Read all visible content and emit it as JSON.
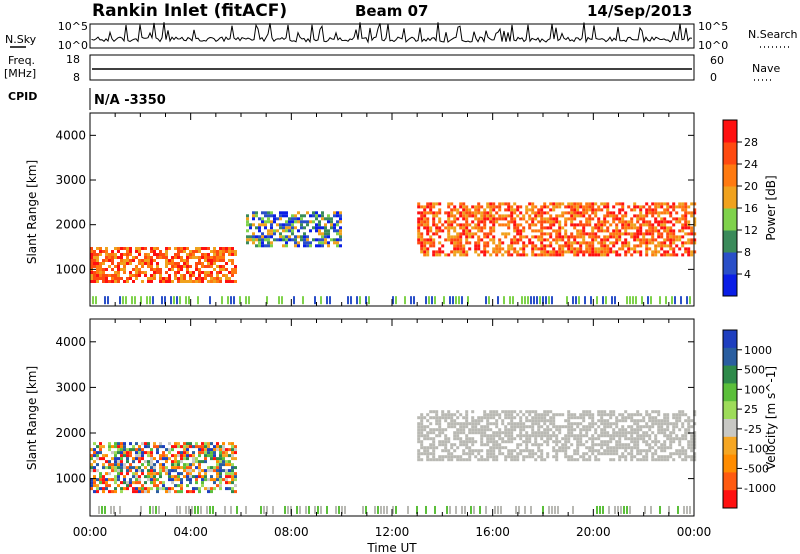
{
  "header": {
    "station": "Rankin Inlet (fitACF)",
    "beam": "Beam 07",
    "date": "14/Sep/2013"
  },
  "strip_labels": {
    "nsky": "N.Sky",
    "nsearch": "N.Search",
    "freq_top": "Freq.",
    "freq_unit": "[MHz]",
    "nave": "Nave",
    "cpid": "CPID",
    "cpid_value": "N/A -3350"
  },
  "strips": {
    "noise_left_ticks": [
      "10^5",
      "10^0"
    ],
    "noise_right_ticks": [
      "10^5",
      "10^0"
    ],
    "freq_left_ticks": [
      "18",
      "8"
    ],
    "freq_right_ticks": [
      "60",
      "0"
    ]
  },
  "colors": {
    "power_scale": [
      "#0a1ee6",
      "#2a4fc8",
      "#3a8a5a",
      "#7fd24b",
      "#f0a21e",
      "#ff7a10",
      "#ff4a10",
      "#ff1010"
    ],
    "velocity_scale": [
      "#1f3fbf",
      "#2a5ea0",
      "#2e8a4a",
      "#5bbf3a",
      "#9edc5a",
      "#c8c8c4",
      "#f5a623",
      "#ff8c00",
      "#ff5a10",
      "#ff1010"
    ],
    "ground_scatter": "#b9b9b4"
  },
  "chart_data": [
    {
      "type": "heatmap",
      "title": "",
      "xlabel": "",
      "ylabel": "Slant Range [km]",
      "x_ticks": [
        "00:00",
        "04:00",
        "08:00",
        "12:00",
        "16:00",
        "20:00",
        "00:00"
      ],
      "y_ticks": [
        "1000",
        "2000",
        "3000",
        "4000"
      ],
      "xlim_hours": [
        0,
        24
      ],
      "ylim_km": [
        180,
        4500
      ],
      "colorbar": {
        "label": "Power [dB]",
        "ticks": [
          "4",
          "8",
          "12",
          "16",
          "20",
          "24",
          "28"
        ],
        "range": [
          0,
          30
        ]
      },
      "features": [
        {
          "from_h": 0.0,
          "to_h": 5.8,
          "range_km": [
            700,
            1500
          ],
          "level": "high"
        },
        {
          "from_h": 6.2,
          "to_h": 10.0,
          "range_km": [
            1500,
            2300
          ],
          "level": "medium"
        },
        {
          "from_h": 13.0,
          "to_h": 24.0,
          "range_km": [
            1300,
            2500
          ],
          "level": "high"
        }
      ]
    },
    {
      "type": "heatmap",
      "title": "",
      "xlabel": "Time UT",
      "ylabel": "Slant Range [km]",
      "x_ticks": [
        "00:00",
        "04:00",
        "08:00",
        "12:00",
        "16:00",
        "20:00",
        "00:00"
      ],
      "y_ticks": [
        "1000",
        "2000",
        "3000",
        "4000"
      ],
      "xlim_hours": [
        0,
        24
      ],
      "ylim_km": [
        180,
        4500
      ],
      "colorbar": {
        "label": "Velocity [m s^-1]",
        "ticks": [
          "1000",
          "500",
          "100",
          "25",
          "-25",
          "-100",
          "-500",
          "-1000"
        ],
        "range": [
          -1000,
          1000
        ]
      },
      "features": [
        {
          "from_h": 0.0,
          "to_h": 5.8,
          "range_km": [
            700,
            1800
          ],
          "level": "mixed"
        },
        {
          "from_h": 13.0,
          "to_h": 24.0,
          "range_km": [
            1400,
            2500
          ],
          "level": "ground scatter"
        }
      ]
    }
  ]
}
